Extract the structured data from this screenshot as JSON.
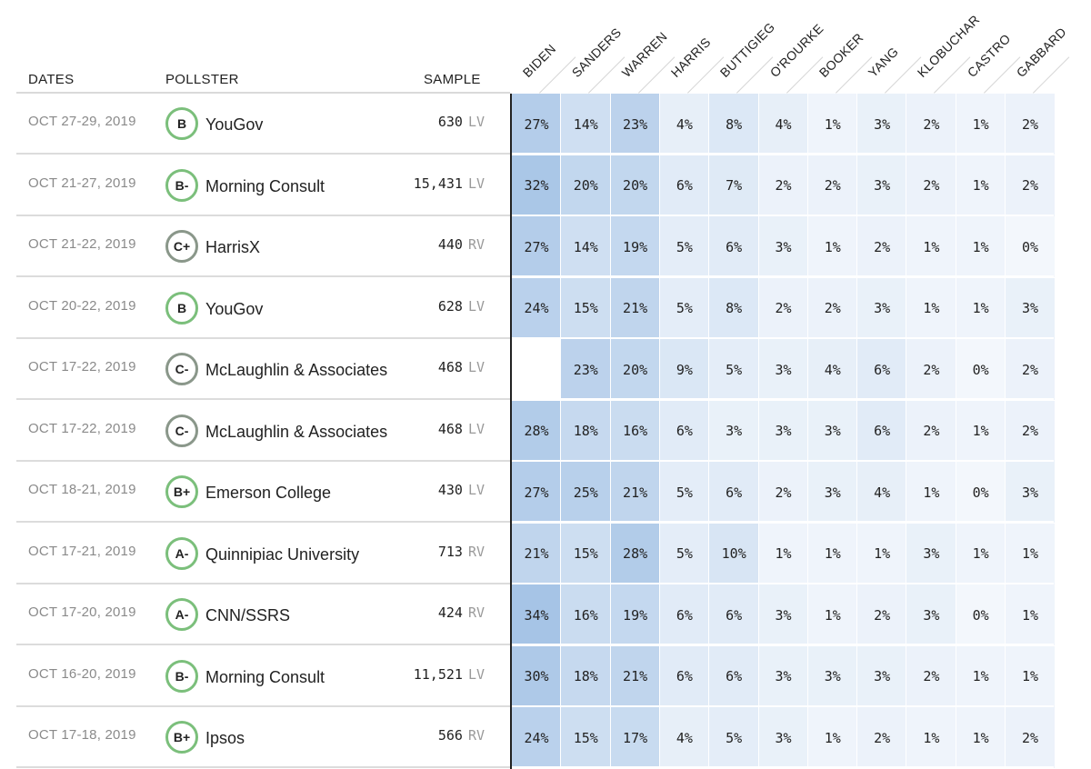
{
  "headers": {
    "dates": "DATES",
    "pollster": "POLLSTER",
    "sample": "SAMPLE"
  },
  "candidates": [
    "BIDEN",
    "SANDERS",
    "WARREN",
    "HARRIS",
    "BUTTIGIEG",
    "O'ROURKE",
    "BOOKER",
    "YANG",
    "KLOBUCHAR",
    "CASTRO",
    "GABBARD"
  ],
  "colors": {
    "grade_ab_ring": "#7bbf7b",
    "grade_c_ring": "#8a978a",
    "heat_max": "#a6c4e6",
    "heat_min": "#f3f7fc"
  },
  "rows": [
    {
      "date": "OCT 27-29, 2019",
      "grade": "B",
      "pollster": "YouGov",
      "sample": "630",
      "type": "LV",
      "values": [
        "27%",
        "14%",
        "23%",
        "4%",
        "8%",
        "4%",
        "1%",
        "3%",
        "2%",
        "1%",
        "2%"
      ]
    },
    {
      "date": "OCT 21-27, 2019",
      "grade": "B-",
      "pollster": "Morning Consult",
      "sample": "15,431",
      "type": "LV",
      "values": [
        "32%",
        "20%",
        "20%",
        "6%",
        "7%",
        "2%",
        "2%",
        "3%",
        "2%",
        "1%",
        "2%"
      ]
    },
    {
      "date": "OCT 21-22, 2019",
      "grade": "C+",
      "pollster": "HarrisX",
      "sample": "440",
      "type": "RV",
      "values": [
        "27%",
        "14%",
        "19%",
        "5%",
        "6%",
        "3%",
        "1%",
        "2%",
        "1%",
        "1%",
        "0%"
      ]
    },
    {
      "date": "OCT 20-22, 2019",
      "grade": "B",
      "pollster": "YouGov",
      "sample": "628",
      "type": "LV",
      "values": [
        "24%",
        "15%",
        "21%",
        "5%",
        "8%",
        "2%",
        "2%",
        "3%",
        "1%",
        "1%",
        "3%"
      ]
    },
    {
      "date": "OCT 17-22, 2019",
      "grade": "C-",
      "pollster": "McLaughlin & Associates",
      "sample": "468",
      "type": "LV",
      "values": [
        "",
        "23%",
        "20%",
        "9%",
        "5%",
        "3%",
        "4%",
        "6%",
        "2%",
        "0%",
        "2%"
      ]
    },
    {
      "date": "OCT 17-22, 2019",
      "grade": "C-",
      "pollster": "McLaughlin & Associates",
      "sample": "468",
      "type": "LV",
      "values": [
        "28%",
        "18%",
        "16%",
        "6%",
        "3%",
        "3%",
        "3%",
        "6%",
        "2%",
        "1%",
        "2%"
      ]
    },
    {
      "date": "OCT 18-21, 2019",
      "grade": "B+",
      "pollster": "Emerson College",
      "sample": "430",
      "type": "LV",
      "values": [
        "27%",
        "25%",
        "21%",
        "5%",
        "6%",
        "2%",
        "3%",
        "4%",
        "1%",
        "0%",
        "3%"
      ]
    },
    {
      "date": "OCT 17-21, 2019",
      "grade": "A-",
      "pollster": "Quinnipiac University",
      "sample": "713",
      "type": "RV",
      "values": [
        "21%",
        "15%",
        "28%",
        "5%",
        "10%",
        "1%",
        "1%",
        "1%",
        "3%",
        "1%",
        "1%"
      ]
    },
    {
      "date": "OCT 17-20, 2019",
      "grade": "A-",
      "pollster": "CNN/SSRS",
      "sample": "424",
      "type": "RV",
      "values": [
        "34%",
        "16%",
        "19%",
        "6%",
        "6%",
        "3%",
        "1%",
        "2%",
        "3%",
        "0%",
        "1%"
      ]
    },
    {
      "date": "OCT 16-20, 2019",
      "grade": "B-",
      "pollster": "Morning Consult",
      "sample": "11,521",
      "type": "LV",
      "values": [
        "30%",
        "18%",
        "21%",
        "6%",
        "6%",
        "3%",
        "3%",
        "3%",
        "2%",
        "1%",
        "1%"
      ]
    },
    {
      "date": "OCT 17-18, 2019",
      "grade": "B+",
      "pollster": "Ipsos",
      "sample": "566",
      "type": "RV",
      "values": [
        "24%",
        "15%",
        "17%",
        "4%",
        "5%",
        "3%",
        "1%",
        "2%",
        "1%",
        "1%",
        "2%"
      ]
    }
  ]
}
